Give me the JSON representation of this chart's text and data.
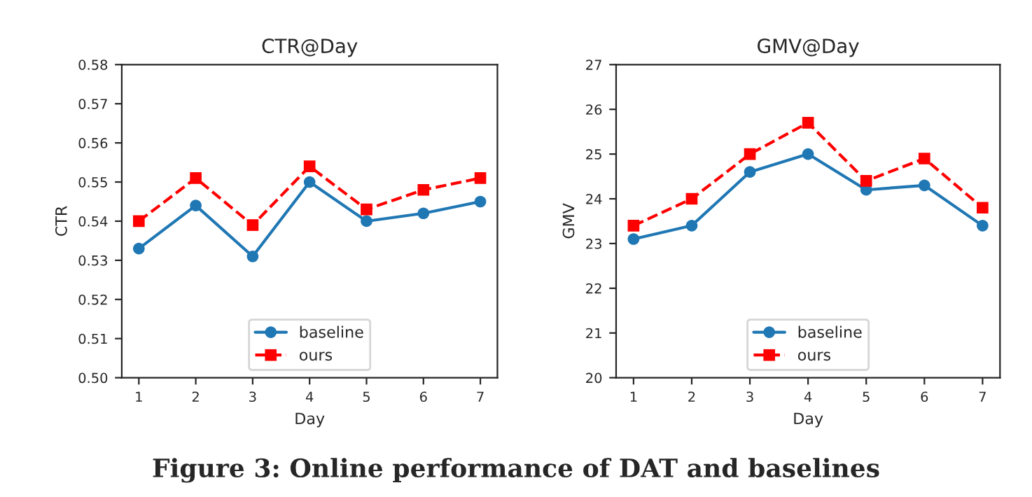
{
  "chart_data": [
    {
      "type": "line",
      "title": "CTR@Day",
      "xlabel": "Day",
      "ylabel": "CTR",
      "x": [
        1,
        2,
        3,
        4,
        5,
        6,
        7
      ],
      "xlim": [
        0.7,
        7.3
      ],
      "xticks": [
        1,
        2,
        3,
        4,
        5,
        6,
        7
      ],
      "ylim": [
        0.5,
        0.58
      ],
      "yticks": [
        {
          "value": 0.5,
          "label": "0.50"
        },
        0.51,
        0.52,
        0.53,
        0.54,
        0.55,
        0.56,
        0.57,
        0.58
      ],
      "legend": "bottom",
      "grid": false,
      "series": [
        {
          "name": "baseline",
          "color": "#1f77b4",
          "marker": "circle",
          "line_style": "solid",
          "values": [
            0.533,
            0.544,
            0.531,
            0.55,
            0.54,
            0.542,
            0.545
          ]
        },
        {
          "name": "ours",
          "color": "#ff0000",
          "marker": "square",
          "line_style": "dashed",
          "values": [
            0.54,
            0.551,
            0.539,
            0.554,
            0.543,
            0.548,
            0.551
          ]
        }
      ]
    },
    {
      "type": "line",
      "title": "GMV@Day",
      "xlabel": "Day",
      "ylabel": "GMV",
      "x": [
        1,
        2,
        3,
        4,
        5,
        6,
        7
      ],
      "xlim": [
        0.7,
        7.3
      ],
      "xticks": [
        1,
        2,
        3,
        4,
        5,
        6,
        7
      ],
      "ylim": [
        20,
        27
      ],
      "yticks": [
        20,
        21,
        22,
        23,
        24,
        25,
        26,
        27
      ],
      "legend": "bottom",
      "grid": false,
      "annotations": [
        "Figure 3: Online performance of DAT and baselines"
      ],
      "series": [
        {
          "name": "baseline",
          "color": "#1f77b4",
          "marker": "circle",
          "line_style": "solid",
          "values": [
            23.1,
            23.4,
            24.6,
            25.0,
            24.2,
            24.3,
            23.4
          ]
        },
        {
          "name": "ours",
          "color": "#ff0000",
          "marker": "square",
          "line_style": "dashed",
          "values": [
            23.4,
            24.0,
            25.0,
            25.7,
            24.4,
            24.9,
            23.8
          ]
        }
      ]
    }
  ]
}
